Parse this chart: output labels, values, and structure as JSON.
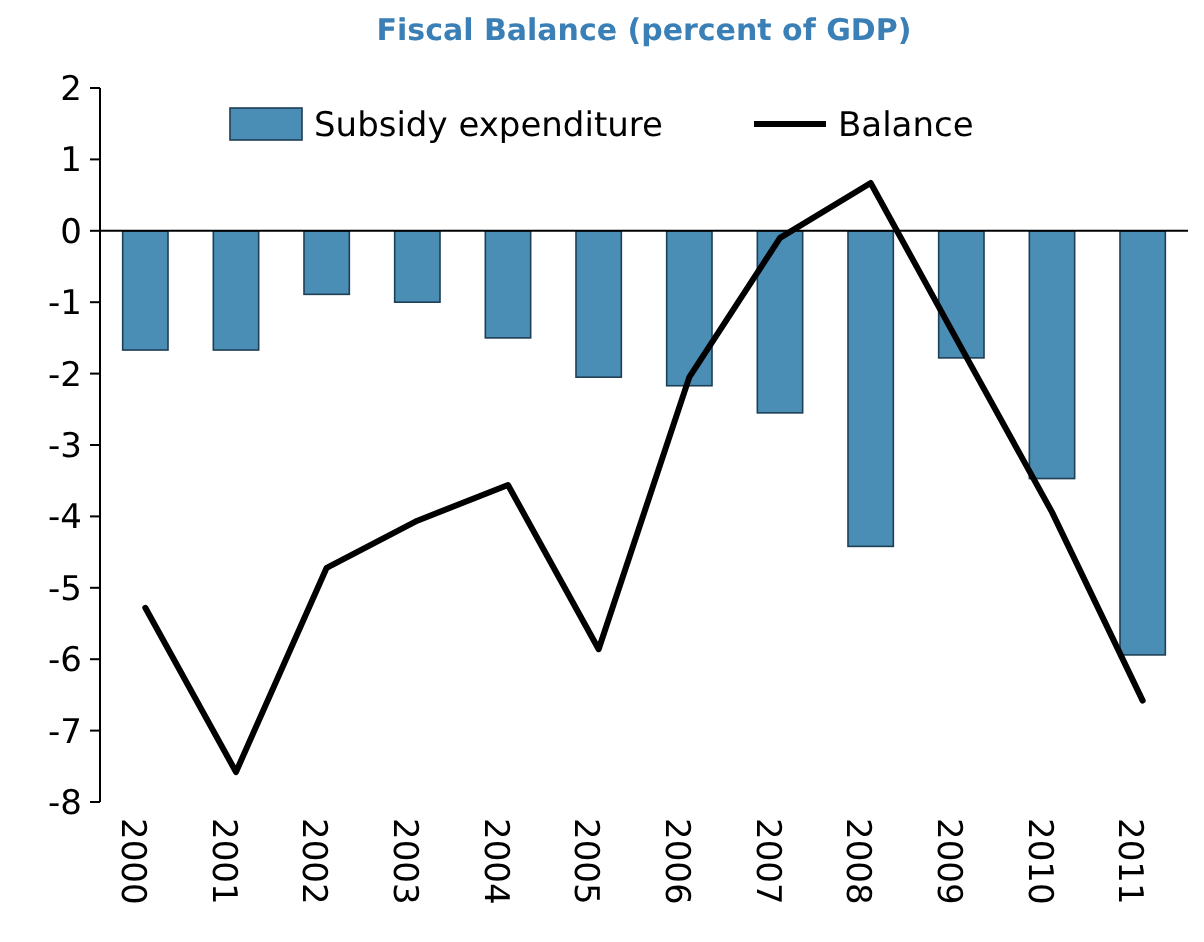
{
  "chart_data": {
    "type": "bar",
    "title": "Fiscal Balance (percent of GDP)",
    "categories": [
      "2000",
      "2001",
      "2002",
      "2003",
      "2004",
      "2005",
      "2006",
      "2007",
      "2008",
      "2009",
      "2010",
      "2011"
    ],
    "series": [
      {
        "name": "Subsidy expenditure",
        "color": "#4a8db5",
        "values": [
          -1.67,
          -1.67,
          -0.89,
          -1.0,
          -1.5,
          -2.05,
          -2.17,
          -2.55,
          -4.42,
          -1.78,
          -3.47,
          -5.94
        ]
      },
      {
        "name": "Balance",
        "type": "line",
        "color": "#000000",
        "values": [
          -5.28,
          -7.58,
          -4.72,
          -4.06,
          -3.56,
          -5.86,
          -2.05,
          -0.1,
          0.67,
          -1.64,
          -3.94,
          -6.58
        ]
      }
    ],
    "ylim": [
      -8,
      2
    ],
    "yticks": [
      -8,
      -7,
      -6,
      -5,
      -4,
      -3,
      -2,
      -1,
      0,
      1,
      2
    ],
    "legend": "top",
    "marker": "none",
    "line_style": "solid"
  }
}
